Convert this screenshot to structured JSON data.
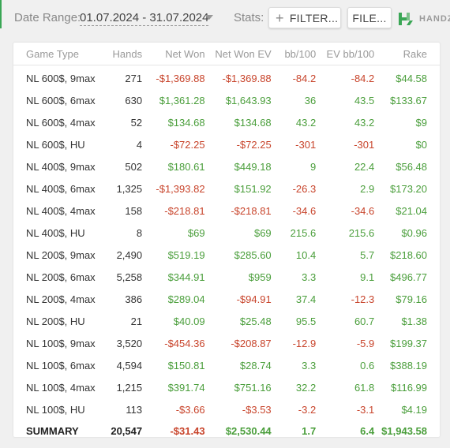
{
  "toolbar": {
    "date_label": "Date Range:",
    "date_value": "01.07.2024 - 31.07.2024",
    "stats_label": "Stats:",
    "filter_label": "FILTER...",
    "file_label": "FILE...",
    "logo_text": "HANDZ"
  },
  "colors": {
    "positive": "#4a9e3b",
    "negative": "#c8442b",
    "accent": "#3aa655"
  },
  "table": {
    "headers": [
      "Game Type",
      "Hands",
      "Net Won",
      "Net Won  EV",
      "bb/100",
      "EV bb/100",
      "Rake"
    ],
    "rows": [
      [
        "NL 600$, 9max",
        "271",
        "-$1,369.88",
        "-$1,369.88",
        "-84.2",
        "-84.2",
        "$44.58"
      ],
      [
        "NL 600$, 6max",
        "630",
        "$1,361.28",
        "$1,643.93",
        "36",
        "43.5",
        "$133.67"
      ],
      [
        "NL 600$, 4max",
        "52",
        "$134.68",
        "$134.68",
        "43.2",
        "43.2",
        "$9"
      ],
      [
        "NL 600$, HU",
        "4",
        "-$72.25",
        "-$72.25",
        "-301",
        "-301",
        "$0"
      ],
      [
        "NL 400$, 9max",
        "502",
        "$180.61",
        "$449.18",
        "9",
        "22.4",
        "$56.48"
      ],
      [
        "NL 400$, 6max",
        "1,325",
        "-$1,393.82",
        "$151.92",
        "-26.3",
        "2.9",
        "$173.20"
      ],
      [
        "NL 400$, 4max",
        "158",
        "-$218.81",
        "-$218.81",
        "-34.6",
        "-34.6",
        "$21.04"
      ],
      [
        "NL 400$, HU",
        "8",
        "$69",
        "$69",
        "215.6",
        "215.6",
        "$0.96"
      ],
      [
        "NL 200$, 9max",
        "2,490",
        "$519.19",
        "$285.60",
        "10.4",
        "5.7",
        "$218.60"
      ],
      [
        "NL 200$, 6max",
        "5,258",
        "$344.91",
        "$959",
        "3.3",
        "9.1",
        "$496.77"
      ],
      [
        "NL 200$, 4max",
        "386",
        "$289.04",
        "-$94.91",
        "37.4",
        "-12.3",
        "$79.16"
      ],
      [
        "NL 200$, HU",
        "21",
        "$40.09",
        "$25.48",
        "95.5",
        "60.7",
        "$1.38"
      ],
      [
        "NL 100$, 9max",
        "3,520",
        "-$454.36",
        "-$208.87",
        "-12.9",
        "-5.9",
        "$199.37"
      ],
      [
        "NL 100$, 6max",
        "4,594",
        "$150.81",
        "$28.74",
        "3.3",
        "0.6",
        "$388.19"
      ],
      [
        "NL 100$, 4max",
        "1,215",
        "$391.74",
        "$751.16",
        "32.2",
        "61.8",
        "$116.99"
      ],
      [
        "NL 100$, HU",
        "113",
        "-$3.66",
        "-$3.53",
        "-3.2",
        "-3.1",
        "$4.19"
      ]
    ],
    "summary": [
      "SUMMARY",
      "20,547",
      "-$31.43",
      "$2,530.44",
      "1.7",
      "6.4",
      "$1,943.58"
    ]
  }
}
